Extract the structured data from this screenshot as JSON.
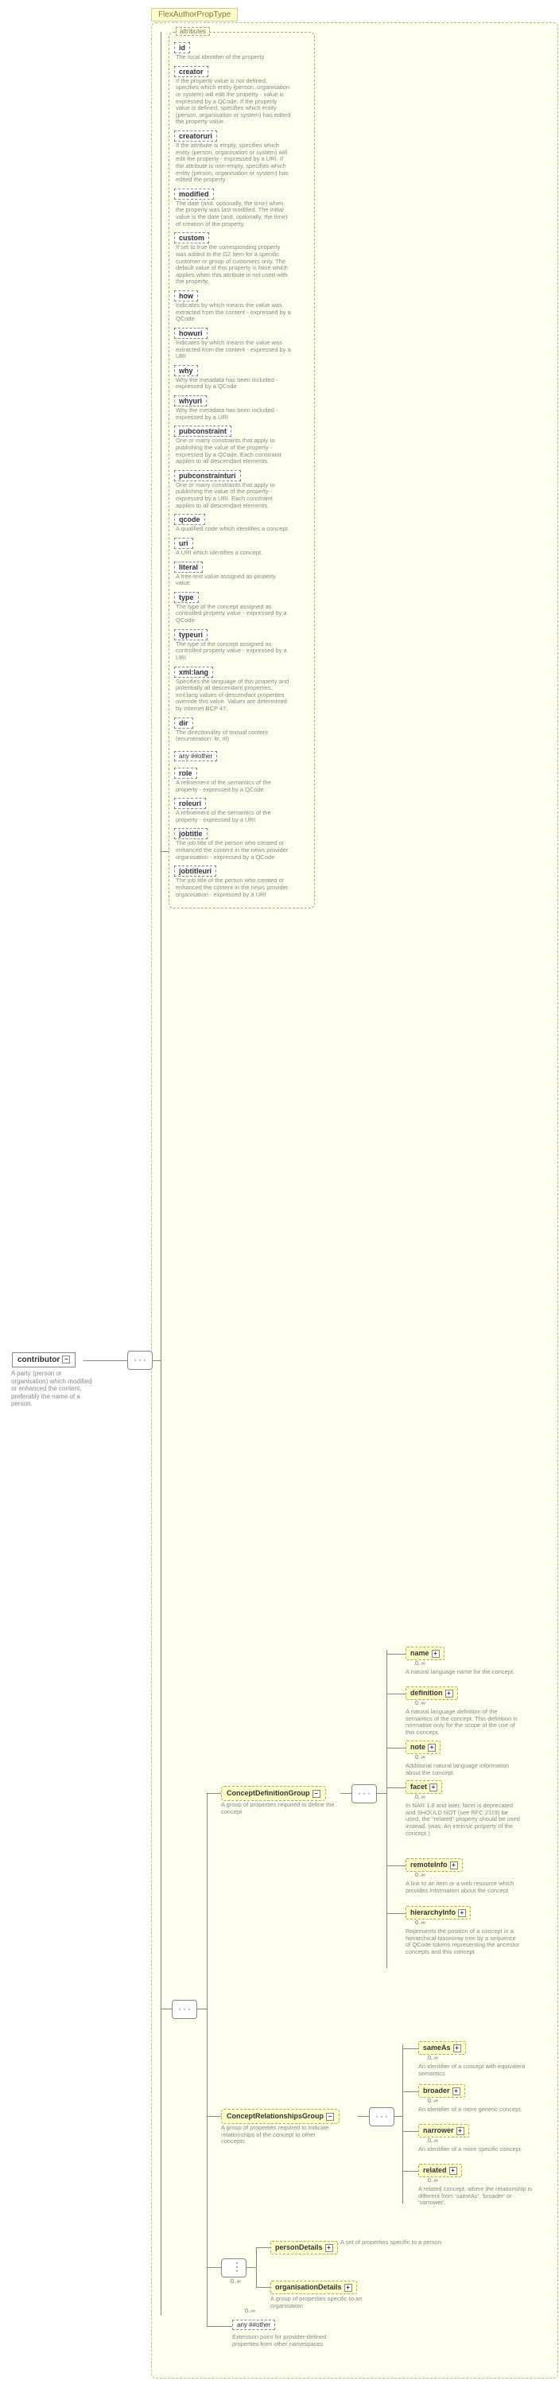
{
  "header": "FlexAuthorPropType",
  "root": {
    "name": "contributor",
    "desc": "A party (person or organisation) which modified or enhanced the content, preferably the name of a person."
  },
  "attrs_label": "attributes",
  "attrs": [
    {
      "n": "id",
      "d": "The local identifier of the property."
    },
    {
      "n": "creator",
      "d": "If the property value is not defined, specifies which entity (person, organisation or system) will edit the property - value is expressed by a QCode. If the property value is defined, specifies which entity (person, organisation or system) has edited the property value."
    },
    {
      "n": "creatoruri",
      "d": "If the attribute is empty, specifies which entity (person, organisation or system) will edit the property - expressed by a URI. If the attribute is non-empty, specifies which entity (person, organisation or system) has edited the property."
    },
    {
      "n": "modified",
      "d": "The date (and, optionally, the time) when the property was last modified. The initial value is the date (and, optionally, the time) of creation of the property."
    },
    {
      "n": "custom",
      "d": "If set to true the corresponding property was added to the G2 Item for a specific customer or group of customers only. The default value of this property is false which applies when this attribute is not used with the property."
    },
    {
      "n": "how",
      "d": "Indicates by which means the value was extracted from the content - expressed by a QCode"
    },
    {
      "n": "howuri",
      "d": "Indicates by which means the value was extracted from the content - expressed by a URI"
    },
    {
      "n": "why",
      "d": "Why the metadata has been included - expressed by a QCode"
    },
    {
      "n": "whyuri",
      "d": "Why the metadata has been included - expressed by a URI"
    },
    {
      "n": "pubconstraint",
      "d": "One or many constraints that apply to publishing the value of the property - expressed by a QCode. Each constraint applies to all descendant elements."
    },
    {
      "n": "pubconstrainturi",
      "d": "One or many constraints that apply to publishing the value of the property - expressed by a URI. Each constraint applies to all descendant elements."
    },
    {
      "n": "qcode",
      "d": "A qualified code which identifies a concept."
    },
    {
      "n": "uri",
      "d": "A URI which identifies a concept."
    },
    {
      "n": "literal",
      "d": "A free-text value assigned as property value."
    },
    {
      "n": "type",
      "d": "The type of the concept assigned as controlled property value - expressed by a QCode"
    },
    {
      "n": "typeuri",
      "d": "The type of the concept assigned as controlled property value - expressed by a URI"
    },
    {
      "n": "xml:lang",
      "d": "Specifies the language of this property and potentially all descendant properties. xml:lang values of descendant properties override this value. Values are determined by Internet BCP 47."
    },
    {
      "n": "dir",
      "d": "The directionality of textual content (enumeration: ltr, rtl)"
    },
    {
      "n": "role",
      "d": "A refinement of the semantics of the property - expressed by a QCode"
    },
    {
      "n": "roleuri",
      "d": "A refinement of the semantics of the property - expressed by a URI"
    },
    {
      "n": "jobtitle",
      "d": "The job title of the person who created or enhanced the content in the news provider organisation - expressed by a QCode"
    },
    {
      "n": "jobtitleuri",
      "d": "The job title of the person who created or enhanced the content in the news provider organisation - expressed by a URI"
    }
  ],
  "any_other": "any ##other",
  "groups": {
    "def": {
      "name": "ConceptDefinitionGroup",
      "desc": "A group of properties required to define the concept"
    },
    "rel": {
      "name": "ConceptRelationshipsGroup",
      "desc": "A group of properties required to indicate relationships of the concept to other concepts"
    }
  },
  "def_children": [
    {
      "n": "name",
      "d": "A natural language name for the concept."
    },
    {
      "n": "definition",
      "d": "A natural language definition of the semantics of the concept. This definition is normative only for the scope of the use of this concept."
    },
    {
      "n": "note",
      "d": "Additional natural language information about the concept."
    },
    {
      "n": "facet",
      "d": "In NAR 1.8 and later, facet is deprecated and SHOULD NOT (see RFC 2119) be used, the \"related\" property should be used instead. (was: An intrinsic property of the concept.)"
    },
    {
      "n": "remoteInfo",
      "d": "A link to an item or a web resource which provides information about the concept"
    },
    {
      "n": "hierarchyInfo",
      "d": "Represents the position of a concept in a hierarchical taxonomy tree by a sequence of QCode tokens representing the ancestor concepts and this concept"
    }
  ],
  "rel_children": [
    {
      "n": "sameAs",
      "d": "An identifier of a concept with equivalent semantics"
    },
    {
      "n": "broader",
      "d": "An identifier of a more generic concept."
    },
    {
      "n": "narrower",
      "d": "An identifier of a more specific concept."
    },
    {
      "n": "related",
      "d": "A related concept, where the relationship is different from 'sameAs', 'broader' or 'narrower'."
    }
  ],
  "bottom": {
    "person": {
      "n": "personDetails",
      "d": "A set of properties specific to a person"
    },
    "org": {
      "n": "organisationDetails",
      "d": "A group of properties specific to an organisation"
    },
    "any": {
      "n": "any ##other",
      "d": "Extension point for provider-defined properties from other namespaces"
    }
  },
  "mult": "0..∞",
  "colors": {
    "bg": "#ffffee"
  }
}
